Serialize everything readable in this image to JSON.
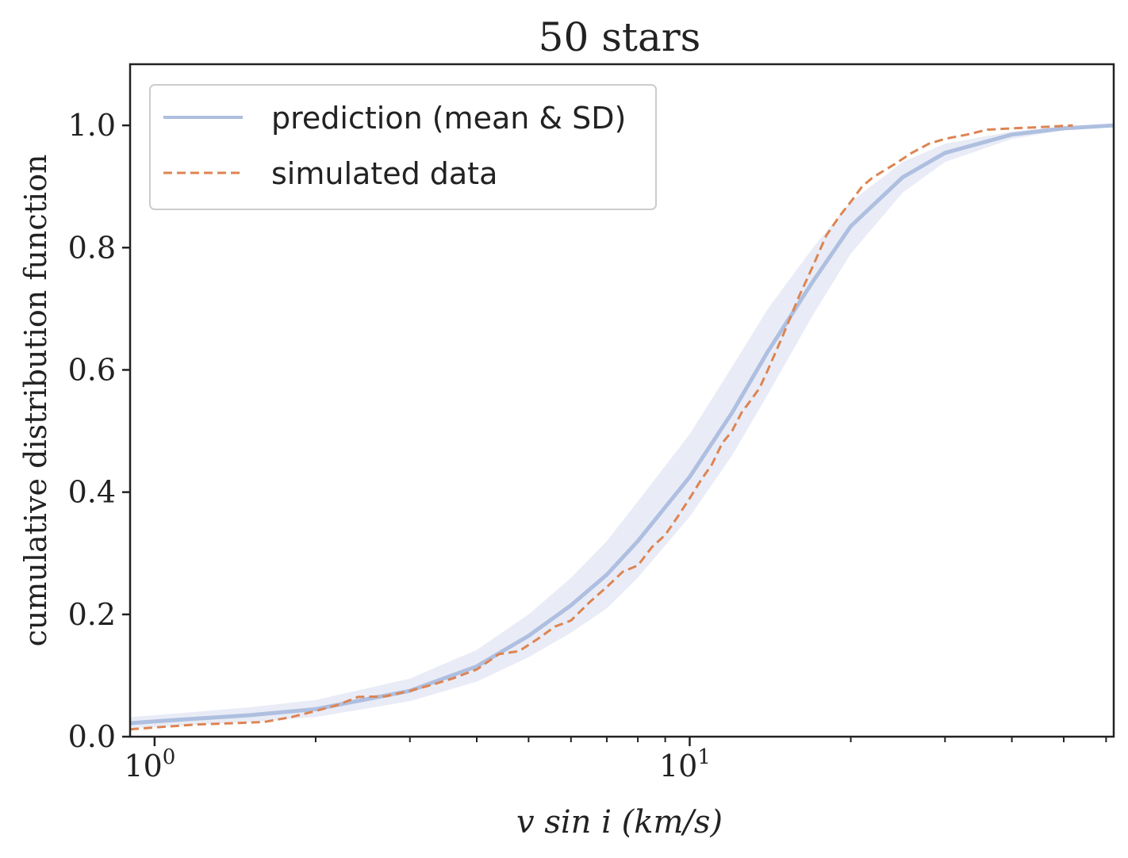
{
  "chart_data": {
    "type": "line",
    "title": "50 stars",
    "xlabel": "v sin i (km/s)",
    "ylabel": "cumulative distribution function",
    "xscale": "log",
    "xlim": [
      0.9,
      62
    ],
    "ylim": [
      0.0,
      1.1
    ],
    "x_ticks": [
      {
        "value": 1,
        "base": "10",
        "exp": "0"
      },
      {
        "value": 10,
        "base": "10",
        "exp": "1"
      }
    ],
    "y_ticks": [
      "0.0",
      "0.2",
      "0.4",
      "0.6",
      "0.8",
      "1.0"
    ],
    "legend": {
      "position": "top-left",
      "entries": [
        {
          "label": "prediction (mean & SD)",
          "style": "solid",
          "color": "#aebfe0"
        },
        {
          "label": "simulated data",
          "style": "dashed",
          "color": "#dd8452"
        }
      ]
    },
    "series": [
      {
        "name": "prediction (mean & SD)",
        "color": "#aebfe0",
        "band_color": "#e5e9f4",
        "x": [
          0.9,
          1.0,
          1.5,
          2.0,
          3.0,
          4.0,
          5.0,
          6.0,
          7.0,
          8.0,
          10.0,
          12.0,
          14.0,
          17.0,
          20.0,
          25.0,
          30.0,
          40.0,
          50.0,
          62.0
        ],
        "mean": [
          0.022,
          0.025,
          0.035,
          0.045,
          0.075,
          0.115,
          0.165,
          0.215,
          0.265,
          0.32,
          0.425,
          0.53,
          0.63,
          0.745,
          0.835,
          0.915,
          0.955,
          0.985,
          0.995,
          1.0
        ],
        "lower": [
          0.014,
          0.016,
          0.024,
          0.032,
          0.058,
          0.09,
          0.13,
          0.17,
          0.21,
          0.26,
          0.36,
          0.46,
          0.56,
          0.69,
          0.79,
          0.89,
          0.94,
          0.978,
          0.992,
          0.998
        ],
        "upper": [
          0.032,
          0.035,
          0.048,
          0.06,
          0.095,
          0.142,
          0.2,
          0.26,
          0.32,
          0.385,
          0.495,
          0.605,
          0.7,
          0.8,
          0.875,
          0.94,
          0.97,
          0.99,
          0.998,
          1.0
        ]
      },
      {
        "name": "simulated data",
        "color": "#dd8452",
        "x": [
          0.9,
          1.0,
          1.2,
          1.4,
          1.6,
          1.8,
          2.0,
          2.2,
          2.4,
          2.7,
          3.0,
          3.3,
          3.6,
          4.0,
          4.4,
          4.8,
          5.2,
          5.6,
          6.0,
          6.5,
          7.0,
          7.5,
          8.0,
          8.5,
          9.0,
          9.5,
          10.0,
          10.5,
          11.0,
          11.5,
          12.0,
          12.5,
          13.0,
          13.5,
          14.0,
          15.0,
          16.0,
          17.0,
          18.0,
          19.0,
          20.0,
          21.0,
          22.0,
          24.0,
          26.0,
          28.0,
          30.0,
          33.0,
          36.0,
          40.0,
          45.0,
          52.0
        ],
        "y": [
          0.012,
          0.015,
          0.02,
          0.022,
          0.024,
          0.032,
          0.042,
          0.052,
          0.065,
          0.066,
          0.075,
          0.085,
          0.095,
          0.11,
          0.135,
          0.14,
          0.16,
          0.18,
          0.19,
          0.22,
          0.245,
          0.27,
          0.28,
          0.31,
          0.33,
          0.36,
          0.39,
          0.42,
          0.445,
          0.48,
          0.5,
          0.53,
          0.55,
          0.57,
          0.6,
          0.66,
          0.72,
          0.77,
          0.82,
          0.85,
          0.875,
          0.9,
          0.915,
          0.935,
          0.955,
          0.97,
          0.978,
          0.985,
          0.993,
          0.995,
          0.997,
          1.0
        ]
      }
    ]
  }
}
